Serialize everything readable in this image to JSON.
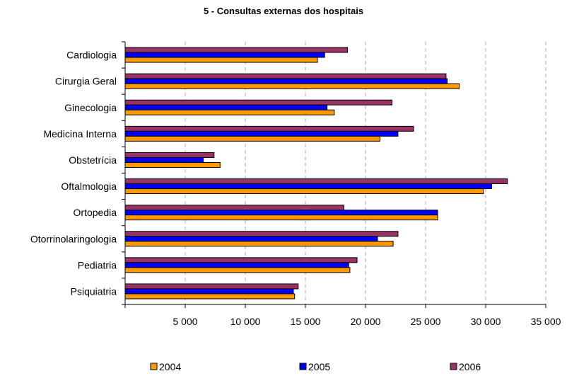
{
  "chart_data": {
    "type": "bar",
    "orientation": "horizontal",
    "title": "5 - Consultas externas dos hospitais",
    "xlabel": "",
    "ylabel": "",
    "xlim": [
      0,
      35000
    ],
    "x_ticks": [
      5000,
      10000,
      15000,
      20000,
      25000,
      30000,
      35000
    ],
    "x_tick_labels": [
      "5 000",
      "10 000",
      "15 000",
      "20 000",
      "25 000",
      "30 000",
      "35 000"
    ],
    "grid": "vertical dashed",
    "legend_position": "bottom",
    "categories": [
      "Cardiologia",
      "Cirurgia Geral",
      "Ginecologia",
      "Medicina Interna",
      "Obstetrícia",
      "Oftalmologia",
      "Ortopedia",
      "Otorrinolaringologia",
      "Pediatria",
      "Psiquiatria"
    ],
    "series": [
      {
        "name": "2004",
        "color": "#FF9900",
        "values": [
          16000,
          27800,
          17400,
          21200,
          7900,
          29800,
          26000,
          22300,
          18700,
          14100
        ]
      },
      {
        "name": "2005",
        "color": "#0000FF",
        "values": [
          16600,
          26800,
          16800,
          22700,
          6500,
          30500,
          26000,
          21000,
          18600,
          14000
        ]
      },
      {
        "name": "2006",
        "color": "#993366",
        "values": [
          18500,
          26700,
          22200,
          24000,
          7400,
          31800,
          18200,
          22700,
          19300,
          14400
        ]
      }
    ]
  }
}
